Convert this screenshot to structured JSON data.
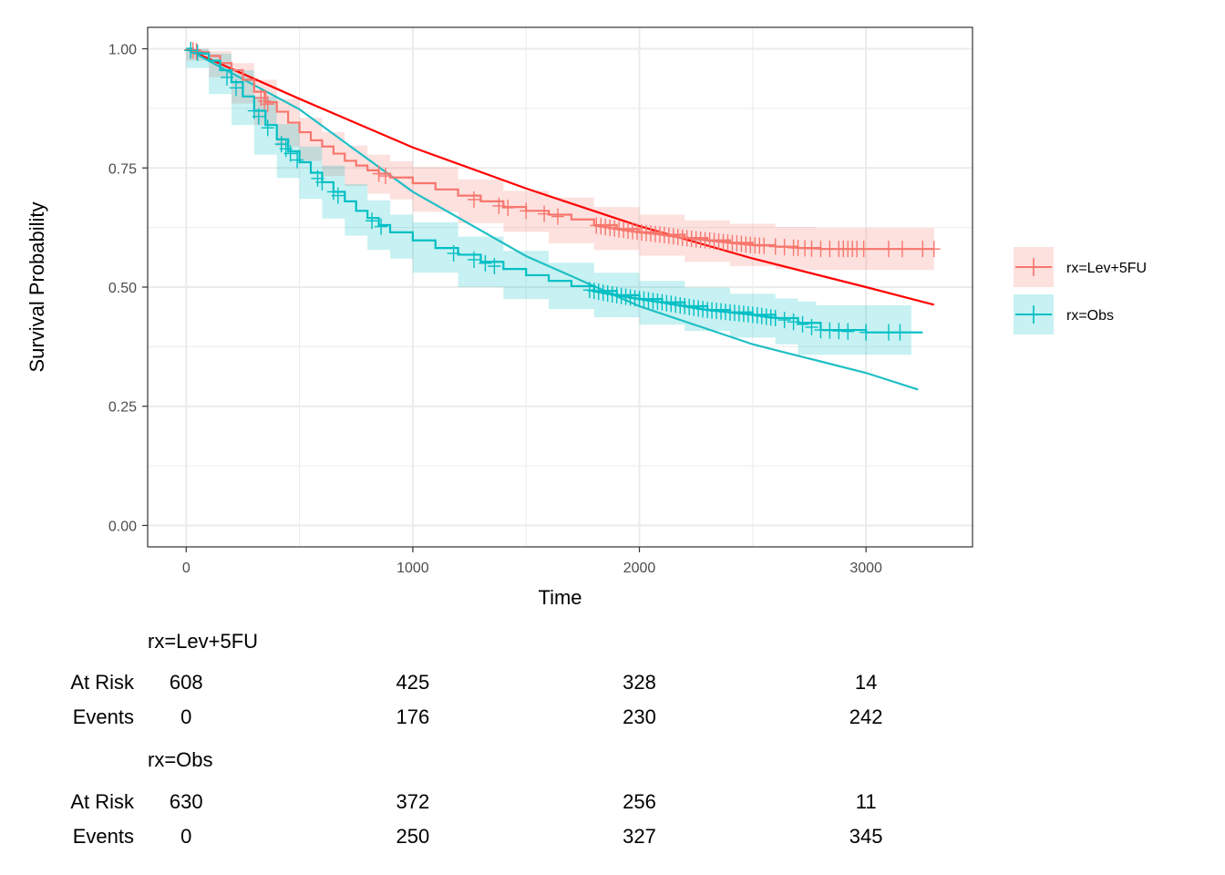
{
  "chart_data": {
    "type": "line",
    "xlabel": "Time",
    "ylabel": "Survival Probability",
    "xlim": [
      -170,
      3470
    ],
    "ylim": [
      -0.045,
      1.045
    ],
    "x_ticks": [
      0,
      1000,
      2000,
      3000
    ],
    "y_ticks": [
      0,
      0.25,
      0.5,
      0.75,
      1
    ],
    "x_tick_labels": [
      "0",
      "1000",
      "2000",
      "3000"
    ],
    "y_tick_labels": [
      "0.00",
      "0.25",
      "0.50",
      "0.75",
      "1.00"
    ],
    "grid": true,
    "legend_position": "right",
    "series": [
      {
        "name": "rx=Lev+5FU",
        "color": "#F8766D",
        "fit_color": "#FF0000",
        "km": [
          [
            0,
            1.0
          ],
          [
            30,
            0.997
          ],
          [
            60,
            0.993
          ],
          [
            100,
            0.985
          ],
          [
            150,
            0.97
          ],
          [
            200,
            0.955
          ],
          [
            250,
            0.935
          ],
          [
            300,
            0.91
          ],
          [
            350,
            0.888
          ],
          [
            400,
            0.868
          ],
          [
            450,
            0.845
          ],
          [
            500,
            0.825
          ],
          [
            550,
            0.808
          ],
          [
            600,
            0.795
          ],
          [
            650,
            0.78
          ],
          [
            700,
            0.765
          ],
          [
            750,
            0.755
          ],
          [
            800,
            0.745
          ],
          [
            850,
            0.738
          ],
          [
            900,
            0.73
          ],
          [
            1000,
            0.718
          ],
          [
            1100,
            0.705
          ],
          [
            1200,
            0.692
          ],
          [
            1300,
            0.68
          ],
          [
            1400,
            0.668
          ],
          [
            1500,
            0.66
          ],
          [
            1600,
            0.652
          ],
          [
            1700,
            0.642
          ],
          [
            1800,
            0.63
          ],
          [
            1900,
            0.622
          ],
          [
            2000,
            0.615
          ],
          [
            2100,
            0.61
          ],
          [
            2200,
            0.603
          ],
          [
            2300,
            0.598
          ],
          [
            2400,
            0.593
          ],
          [
            2500,
            0.588
          ],
          [
            2600,
            0.585
          ],
          [
            2700,
            0.582
          ],
          [
            2800,
            0.58
          ],
          [
            3000,
            0.58
          ],
          [
            3200,
            0.58
          ],
          [
            3300,
            0.58
          ]
        ],
        "ci_upper": [
          [
            0,
            1.0
          ],
          [
            100,
            0.995
          ],
          [
            200,
            0.97
          ],
          [
            300,
            0.935
          ],
          [
            400,
            0.895
          ],
          [
            500,
            0.855
          ],
          [
            600,
            0.825
          ],
          [
            700,
            0.797
          ],
          [
            800,
            0.778
          ],
          [
            900,
            0.764
          ],
          [
            1000,
            0.752
          ],
          [
            1200,
            0.726
          ],
          [
            1400,
            0.702
          ],
          [
            1600,
            0.688
          ],
          [
            1800,
            0.668
          ],
          [
            2000,
            0.652
          ],
          [
            2200,
            0.64
          ],
          [
            2400,
            0.633
          ],
          [
            2600,
            0.626
          ],
          [
            2700,
            0.626
          ],
          [
            2780,
            0.624
          ],
          [
            3000,
            0.624
          ],
          [
            3200,
            0.624
          ],
          [
            3300,
            0.624
          ]
        ],
        "ci_lower": [
          [
            0,
            1.0
          ],
          [
            100,
            0.975
          ],
          [
            200,
            0.94
          ],
          [
            300,
            0.885
          ],
          [
            400,
            0.84
          ],
          [
            500,
            0.795
          ],
          [
            600,
            0.765
          ],
          [
            700,
            0.733
          ],
          [
            800,
            0.712
          ],
          [
            900,
            0.696
          ],
          [
            1000,
            0.684
          ],
          [
            1200,
            0.658
          ],
          [
            1400,
            0.634
          ],
          [
            1600,
            0.616
          ],
          [
            1800,
            0.592
          ],
          [
            2000,
            0.578
          ],
          [
            2200,
            0.566
          ],
          [
            2400,
            0.553
          ],
          [
            2600,
            0.544
          ],
          [
            2700,
            0.538
          ],
          [
            2780,
            0.536
          ],
          [
            3000,
            0.536
          ],
          [
            3200,
            0.536
          ],
          [
            3300,
            0.536
          ]
        ],
        "censored_x": [
          20,
          30,
          45,
          330,
          345,
          360,
          850,
          880,
          1270,
          1380,
          1420,
          1500,
          1580,
          1640,
          1810,
          1830,
          1850,
          1870,
          1890,
          1910,
          1930,
          1950,
          1970,
          1990,
          2010,
          2030,
          2050,
          2070,
          2090,
          2110,
          2130,
          2150,
          2170,
          2190,
          2210,
          2230,
          2250,
          2270,
          2290,
          2310,
          2330,
          2350,
          2370,
          2390,
          2410,
          2430,
          2450,
          2470,
          2490,
          2510,
          2530,
          2550,
          2600,
          2640,
          2680,
          2700,
          2730,
          2760,
          2800,
          2840,
          2880,
          2900,
          2920,
          2940,
          2960,
          2990,
          3100,
          3160,
          3250,
          3300
        ],
        "fit": [
          [
            0,
            1.0
          ],
          [
            500,
            0.895
          ],
          [
            1000,
            0.793
          ],
          [
            1500,
            0.707
          ],
          [
            2000,
            0.628
          ],
          [
            2500,
            0.56
          ],
          [
            3000,
            0.5
          ],
          [
            3300,
            0.463
          ]
        ]
      },
      {
        "name": "rx=Obs",
        "color": "#00BFC4",
        "fit_color": "#1FBFC5",
        "km": [
          [
            0,
            1.0
          ],
          [
            30,
            0.995
          ],
          [
            60,
            0.99
          ],
          [
            100,
            0.975
          ],
          [
            150,
            0.955
          ],
          [
            200,
            0.93
          ],
          [
            250,
            0.9
          ],
          [
            300,
            0.87
          ],
          [
            350,
            0.84
          ],
          [
            400,
            0.81
          ],
          [
            450,
            0.785
          ],
          [
            500,
            0.762
          ],
          [
            550,
            0.74
          ],
          [
            600,
            0.72
          ],
          [
            650,
            0.7
          ],
          [
            700,
            0.68
          ],
          [
            750,
            0.66
          ],
          [
            800,
            0.645
          ],
          [
            850,
            0.63
          ],
          [
            900,
            0.615
          ],
          [
            1000,
            0.598
          ],
          [
            1100,
            0.582
          ],
          [
            1200,
            0.568
          ],
          [
            1300,
            0.553
          ],
          [
            1400,
            0.538
          ],
          [
            1500,
            0.525
          ],
          [
            1600,
            0.513
          ],
          [
            1700,
            0.502
          ],
          [
            1800,
            0.492
          ],
          [
            1900,
            0.483
          ],
          [
            2000,
            0.475
          ],
          [
            2100,
            0.468
          ],
          [
            2200,
            0.46
          ],
          [
            2300,
            0.452
          ],
          [
            2400,
            0.447
          ],
          [
            2500,
            0.442
          ],
          [
            2600,
            0.435
          ],
          [
            2700,
            0.425
          ],
          [
            2800,
            0.41
          ],
          [
            3000,
            0.405
          ],
          [
            3200,
            0.405
          ],
          [
            3250,
            0.405
          ]
        ],
        "ci_upper": [
          [
            0,
            1.0
          ],
          [
            100,
            0.99
          ],
          [
            200,
            0.955
          ],
          [
            300,
            0.9
          ],
          [
            400,
            0.842
          ],
          [
            500,
            0.795
          ],
          [
            600,
            0.755
          ],
          [
            700,
            0.716
          ],
          [
            800,
            0.682
          ],
          [
            900,
            0.652
          ],
          [
            1000,
            0.636
          ],
          [
            1200,
            0.606
          ],
          [
            1400,
            0.576
          ],
          [
            1600,
            0.551
          ],
          [
            1800,
            0.53
          ],
          [
            2000,
            0.513
          ],
          [
            2200,
            0.499
          ],
          [
            2400,
            0.486
          ],
          [
            2600,
            0.476
          ],
          [
            2700,
            0.47
          ],
          [
            2780,
            0.462
          ],
          [
            3000,
            0.462
          ],
          [
            3200,
            0.462
          ]
        ],
        "ci_lower": [
          [
            0,
            1.0
          ],
          [
            100,
            0.96
          ],
          [
            200,
            0.905
          ],
          [
            300,
            0.84
          ],
          [
            400,
            0.778
          ],
          [
            500,
            0.729
          ],
          [
            600,
            0.685
          ],
          [
            700,
            0.644
          ],
          [
            800,
            0.608
          ],
          [
            900,
            0.578
          ],
          [
            1000,
            0.56
          ],
          [
            1200,
            0.53
          ],
          [
            1400,
            0.5
          ],
          [
            1600,
            0.475
          ],
          [
            1800,
            0.454
          ],
          [
            2000,
            0.437
          ],
          [
            2200,
            0.421
          ],
          [
            2400,
            0.408
          ],
          [
            2600,
            0.394
          ],
          [
            2700,
            0.38
          ],
          [
            2780,
            0.358
          ],
          [
            3000,
            0.358
          ],
          [
            3200,
            0.358
          ]
        ],
        "censored_x": [
          20,
          50,
          180,
          220,
          300,
          320,
          360,
          420,
          440,
          460,
          490,
          580,
          600,
          650,
          670,
          820,
          860,
          1180,
          1270,
          1320,
          1360,
          1780,
          1800,
          1820,
          1840,
          1860,
          1880,
          1900,
          1920,
          1940,
          1960,
          1980,
          2000,
          2020,
          2040,
          2060,
          2080,
          2100,
          2120,
          2140,
          2160,
          2180,
          2200,
          2220,
          2240,
          2260,
          2280,
          2300,
          2320,
          2340,
          2360,
          2380,
          2400,
          2420,
          2440,
          2460,
          2480,
          2500,
          2520,
          2540,
          2560,
          2580,
          2600,
          2640,
          2680,
          2720,
          2760,
          2800,
          2840,
          2880,
          2920,
          3000,
          3100,
          3150
        ],
        "fit": [
          [
            0,
            1.0
          ],
          [
            500,
            0.873
          ],
          [
            1000,
            0.7
          ],
          [
            1500,
            0.565
          ],
          [
            2000,
            0.46
          ],
          [
            2500,
            0.38
          ],
          [
            3000,
            0.32
          ],
          [
            3230,
            0.285
          ]
        ]
      }
    ],
    "risk_table": {
      "x": [
        0,
        1000,
        2000,
        3000
      ],
      "groups": [
        {
          "name": "rx=Lev+5FU",
          "at_risk_label": "At Risk",
          "events_label": "Events",
          "at_risk": [
            "608",
            "425",
            "328",
            "14"
          ],
          "events": [
            "0",
            "176",
            "230",
            "242"
          ]
        },
        {
          "name": "rx=Obs",
          "at_risk_label": "At Risk",
          "events_label": "Events",
          "at_risk": [
            "630",
            "372",
            "256",
            "11"
          ],
          "events": [
            "0",
            "250",
            "327",
            "345"
          ]
        }
      ]
    }
  }
}
